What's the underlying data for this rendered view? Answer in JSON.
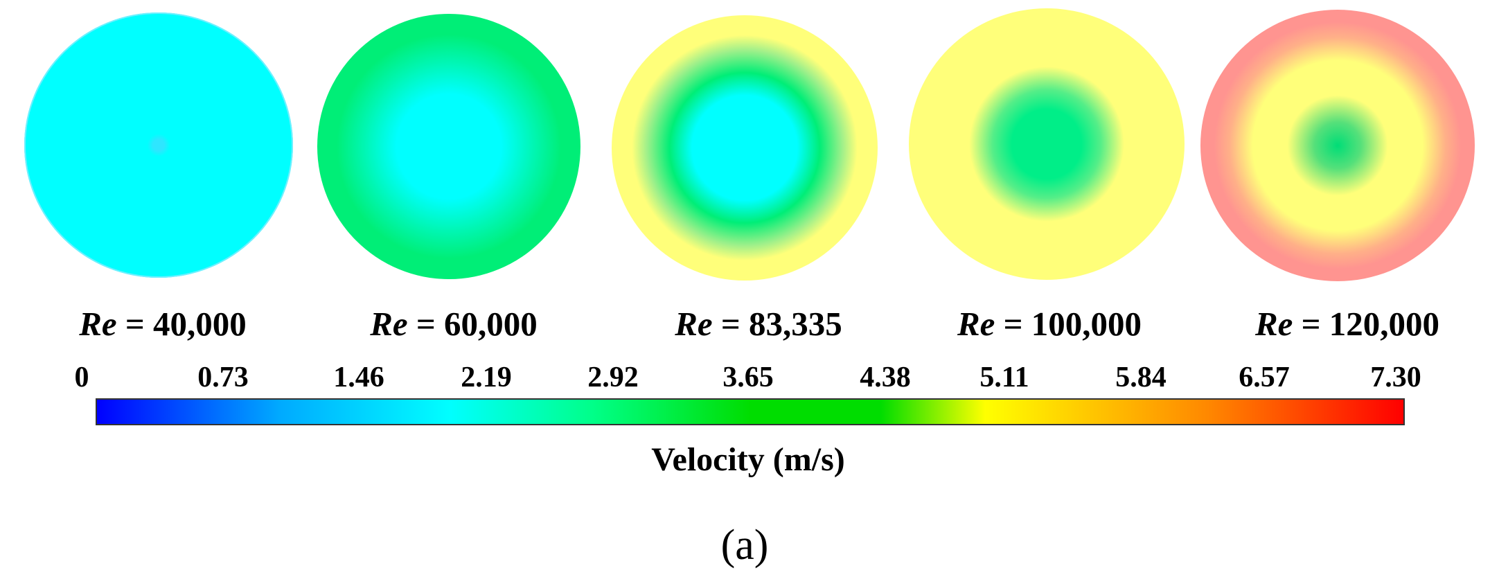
{
  "colors": {
    "c0": "#0000ff",
    "c1": "#00aaff",
    "c2": "#00ffff",
    "c3": "#00ff88",
    "c4": "#00dd00",
    "c5": "#ffff00",
    "c6": "#ff8800",
    "c7": "#ff0000",
    "cyan_field": "#00ffff",
    "green_field": "#00ee77",
    "yellow_field": "#ffff7a",
    "red_field": "#ff9490"
  },
  "cases": [
    {
      "label_var": "Re",
      "label_eq": " = 40,000",
      "value": 40000
    },
    {
      "label_var": "Re",
      "label_eq": " = 60,000",
      "value": 60000
    },
    {
      "label_var": "Re",
      "label_eq": " = 83,335",
      "value": 83335
    },
    {
      "label_var": "Re",
      "label_eq": " = 100,000",
      "value": 100000
    },
    {
      "label_var": "Re",
      "label_eq": " = 120,000",
      "value": 120000
    }
  ],
  "colorbar": {
    "ticks": [
      "0",
      "0.73",
      "1.46",
      "2.19",
      "2.92",
      "3.65",
      "4.38",
      "5.11",
      "5.84",
      "6.57",
      "7.30"
    ],
    "min": 0,
    "max": 7.3,
    "title": "Velocity (m/s)"
  },
  "figure_label": "(a)"
}
